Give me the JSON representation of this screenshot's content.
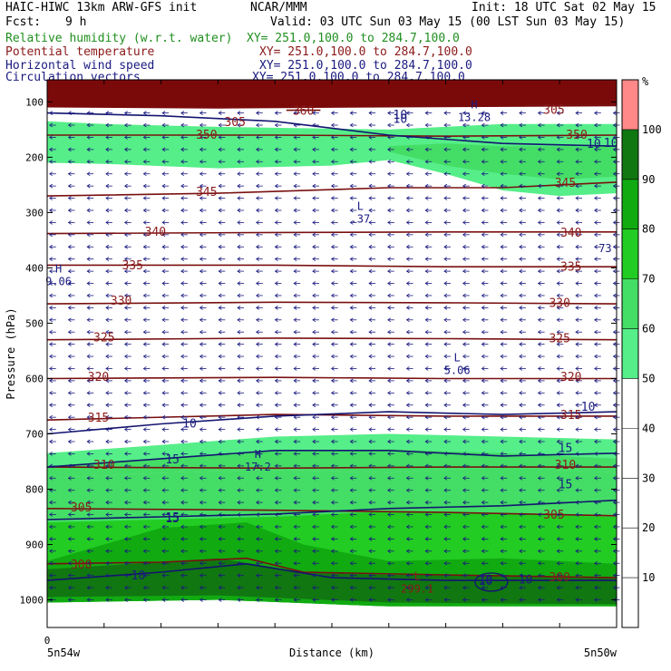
{
  "header": {
    "model": "HAIC-HIWC 13km ARW-GFS init",
    "org": "NCAR/MMM",
    "init": "Init: 18 UTC Sat 02 May 15",
    "fcst_label": "Fcst:",
    "fcst_value": "9 h",
    "valid": "Valid: 03 UTC Sun 03 May 15 (00 LST Sun 03 May 15)",
    "fields": [
      {
        "name": "Relative humidity (w.r.t. water)",
        "xy": "XY= 251.0,100.0 to 284.7,100.0",
        "color": "#1f8f1f"
      },
      {
        "name": "Potential temperature",
        "xy": "XY= 251.0,100.0 to 284.7,100.0",
        "color": "#8b1a1a"
      },
      {
        "name": "Horizontal wind speed",
        "xy": "XY= 251.0,100.0 to 284.7,100.0",
        "color": "#1a1a80"
      },
      {
        "name": "Circulation vectors",
        "xy": "XY= 251.0,100.0 to 284.7,100.0",
        "color": "#1a1a80"
      }
    ]
  },
  "chart_data": {
    "type": "cross-section",
    "ylabel": "Pressure (hPa)",
    "xlabel": "Distance (km)",
    "x_tick": "0",
    "x_left_label": "5n54w",
    "x_right_label": "5n50w",
    "y_ticks": [
      100,
      200,
      300,
      400,
      500,
      600,
      700,
      800,
      900,
      1000
    ],
    "ylim": [
      1050,
      60
    ],
    "x_range": [
      0,
      100
    ],
    "colorbar": {
      "unit": "%",
      "ticks": [
        10,
        20,
        30,
        40,
        50,
        60,
        70,
        80,
        90,
        100
      ],
      "range": [
        0,
        110
      ],
      "bands": [
        {
          "from": 0,
          "to": 50,
          "color": "#ffffff"
        },
        {
          "from": 50,
          "to": 60,
          "color": "#55ee88"
        },
        {
          "from": 60,
          "to": 70,
          "color": "#44dd66"
        },
        {
          "from": 70,
          "to": 80,
          "color": "#22cc22"
        },
        {
          "from": 80,
          "to": 90,
          "color": "#11aa11"
        },
        {
          "from": 90,
          "to": 100,
          "color": "#117711"
        },
        {
          "from": 100,
          "to": 110,
          "color": "#ff8888"
        }
      ]
    },
    "rh_regions": [
      {
        "color": "#55ee88",
        "top": [
          [
            0,
            135
          ],
          [
            10,
            140
          ],
          [
            30,
            145
          ],
          [
            60,
            150
          ],
          [
            80,
            140
          ],
          [
            100,
            140
          ]
        ],
        "bottom": [
          [
            0,
            210
          ],
          [
            10,
            212
          ],
          [
            30,
            220
          ],
          [
            50,
            215
          ],
          [
            60,
            205
          ],
          [
            70,
            230
          ],
          [
            80,
            260
          ],
          [
            90,
            270
          ],
          [
            100,
            265
          ]
        ]
      },
      {
        "color": "#44dd66",
        "top": [
          [
            60,
            180
          ],
          [
            70,
            175
          ],
          [
            80,
            180
          ],
          [
            100,
            180
          ]
        ],
        "bottom": [
          [
            60,
            190
          ],
          [
            70,
            215
          ],
          [
            80,
            230
          ],
          [
            90,
            240
          ],
          [
            100,
            235
          ]
        ]
      },
      {
        "color": "#55ee88",
        "top": [
          [
            0,
            735
          ],
          [
            20,
            720
          ],
          [
            40,
            705
          ],
          [
            60,
            700
          ],
          [
            80,
            705
          ],
          [
            100,
            710
          ]
        ],
        "bottom": [
          [
            0,
            780
          ],
          [
            20,
            770
          ],
          [
            40,
            765
          ],
          [
            60,
            770
          ],
          [
            80,
            760
          ],
          [
            100,
            770
          ]
        ]
      },
      {
        "color": "#44dd66",
        "top": [
          [
            0,
            760
          ],
          [
            20,
            745
          ],
          [
            40,
            730
          ],
          [
            60,
            728
          ],
          [
            80,
            735
          ],
          [
            100,
            745
          ]
        ],
        "bottom": [
          [
            0,
            780
          ],
          [
            20,
            770
          ],
          [
            40,
            765
          ],
          [
            60,
            770
          ],
          [
            80,
            760
          ],
          [
            100,
            770
          ]
        ]
      },
      {
        "color": "#44dd66",
        "top": [
          [
            0,
            780
          ],
          [
            20,
            770
          ],
          [
            40,
            765
          ],
          [
            60,
            770
          ],
          [
            80,
            760
          ],
          [
            100,
            770
          ]
        ],
        "bottom": [
          [
            0,
            1005
          ],
          [
            30,
            1000
          ],
          [
            60,
            1012
          ],
          [
            100,
            1012
          ]
        ]
      },
      {
        "color": "#22cc22",
        "top": [
          [
            0,
            860
          ],
          [
            20,
            855
          ],
          [
            40,
            850
          ],
          [
            60,
            840
          ],
          [
            80,
            845
          ],
          [
            100,
            850
          ]
        ],
        "bottom": [
          [
            0,
            1005
          ],
          [
            30,
            1000
          ],
          [
            60,
            1012
          ],
          [
            100,
            1012
          ]
        ]
      },
      {
        "color": "#11aa11",
        "top": [
          [
            0,
            930
          ],
          [
            20,
            870
          ],
          [
            35,
            860
          ],
          [
            45,
            900
          ],
          [
            60,
            930
          ],
          [
            80,
            925
          ],
          [
            100,
            935
          ]
        ],
        "bottom": [
          [
            0,
            1005
          ],
          [
            30,
            1000
          ],
          [
            60,
            1012
          ],
          [
            100,
            1012
          ]
        ]
      },
      {
        "color": "#117711",
        "top": [
          [
            0,
            945
          ],
          [
            15,
            935
          ],
          [
            30,
            925
          ],
          [
            45,
            950
          ],
          [
            60,
            955
          ],
          [
            80,
            955
          ],
          [
            100,
            960
          ]
        ],
        "bottom": [
          [
            0,
            995
          ],
          [
            30,
            992
          ],
          [
            60,
            1005
          ],
          [
            100,
            1008
          ]
        ]
      },
      {
        "color": "#7a0a0a",
        "top": [
          [
            0,
            60
          ],
          [
            100,
            60
          ]
        ],
        "bottom": [
          [
            0,
            110
          ],
          [
            30,
            112
          ],
          [
            60,
            110
          ],
          [
            100,
            108
          ]
        ]
      }
    ],
    "theta_contours": [
      {
        "value": "345",
        "pts": [
          [
            0,
            270
          ],
          [
            30,
            265
          ],
          [
            60,
            255
          ],
          [
            80,
            255
          ],
          [
            100,
            245
          ]
        ],
        "labels": [
          [
            28,
            262
          ],
          [
            91,
            245
          ]
        ]
      },
      {
        "value": "340",
        "pts": [
          [
            0,
            338
          ],
          [
            40,
            336
          ],
          [
            70,
            335
          ],
          [
            100,
            335
          ]
        ],
        "labels": [
          [
            19,
            334
          ],
          [
            92,
            335
          ]
        ]
      },
      {
        "value": "335",
        "pts": [
          [
            0,
            395
          ],
          [
            40,
            395
          ],
          [
            70,
            398
          ],
          [
            100,
            398
          ]
        ],
        "labels": [
          [
            15,
            394
          ],
          [
            92,
            397
          ]
        ]
      },
      {
        "value": "330",
        "pts": [
          [
            0,
            465
          ],
          [
            40,
            462
          ],
          [
            70,
            463
          ],
          [
            100,
            465
          ]
        ],
        "labels": [
          [
            13,
            458
          ],
          [
            90,
            462
          ]
        ]
      },
      {
        "value": "325",
        "pts": [
          [
            0,
            530
          ],
          [
            40,
            527
          ],
          [
            70,
            528
          ],
          [
            100,
            530
          ]
        ],
        "labels": [
          [
            10,
            525
          ],
          [
            90,
            526
          ]
        ]
      },
      {
        "value": "320",
        "pts": [
          [
            0,
            600
          ],
          [
            40,
            598
          ],
          [
            70,
            600
          ],
          [
            100,
            600
          ]
        ],
        "labels": [
          [
            9,
            596
          ],
          [
            92,
            596
          ]
        ]
      },
      {
        "value": "315",
        "pts": [
          [
            0,
            675
          ],
          [
            40,
            665
          ],
          [
            70,
            668
          ],
          [
            100,
            668
          ]
        ],
        "labels": [
          [
            9,
            670
          ],
          [
            92,
            665
          ]
        ]
      },
      {
        "value": "310",
        "pts": [
          [
            0,
            760
          ],
          [
            40,
            762
          ],
          [
            70,
            760
          ],
          [
            100,
            760
          ]
        ],
        "labels": [
          [
            10,
            755
          ],
          [
            91,
            755
          ]
        ]
      },
      {
        "value": "305",
        "pts": [
          [
            0,
            835
          ],
          [
            40,
            838
          ],
          [
            70,
            842
          ],
          [
            100,
            848
          ]
        ],
        "labels": [
          [
            6,
            832
          ],
          [
            89,
            845
          ]
        ]
      },
      {
        "value": "300",
        "pts": [
          [
            0,
            935
          ],
          [
            20,
            932
          ],
          [
            35,
            925
          ],
          [
            45,
            950
          ],
          [
            70,
            955
          ],
          [
            100,
            960
          ]
        ],
        "labels": [
          [
            6,
            935
          ],
          [
            90,
            958
          ]
        ]
      },
      {
        "value": "350",
        "pts": [
          [
            0,
            160
          ],
          [
            40,
            160
          ],
          [
            70,
            162
          ],
          [
            100,
            160
          ]
        ],
        "labels": [
          [
            28,
            158
          ],
          [
            93,
            158
          ]
        ]
      },
      {
        "value": "360",
        "pts": [
          [
            42,
            115
          ],
          [
            48,
            115
          ]
        ],
        "labels": [
          [
            45,
            115
          ]
        ]
      },
      {
        "value": "305",
        "pts": [
          [
            84,
            105
          ],
          [
            100,
            105
          ]
        ],
        "labels": [
          [
            89,
            113
          ]
        ]
      }
    ],
    "wind_contours": [
      {
        "value": "10",
        "pts": [
          [
            0,
            700
          ],
          [
            20,
            682
          ],
          [
            40,
            668
          ],
          [
            60,
            660
          ],
          [
            80,
            665
          ],
          [
            100,
            660
          ]
        ],
        "labels": [
          [
            25,
            680
          ],
          [
            95,
            650
          ]
        ]
      },
      {
        "value": "15",
        "pts": [
          [
            0,
            760
          ],
          [
            20,
            745
          ],
          [
            40,
            730
          ],
          [
            60,
            730
          ],
          [
            80,
            740
          ],
          [
            100,
            735
          ]
        ],
        "labels": [
          [
            22,
            745
          ],
          [
            91,
            725
          ]
        ]
      },
      {
        "value": "15",
        "pts": [
          [
            0,
            855
          ],
          [
            20,
            850
          ],
          [
            40,
            845
          ],
          [
            60,
            835
          ],
          [
            80,
            830
          ],
          [
            100,
            820
          ]
        ],
        "labels": [
          [
            22,
            850
          ],
          [
            91,
            790
          ]
        ]
      },
      {
        "value": "10",
        "pts": [
          [
            0,
            965
          ],
          [
            20,
            950
          ],
          [
            35,
            935
          ],
          [
            50,
            960
          ],
          [
            70,
            965
          ],
          [
            100,
            965
          ]
        ],
        "labels": [
          [
            16,
            955
          ],
          [
            77,
            962
          ]
        ]
      },
      {
        "value": "10",
        "pts": [
          [
            0,
            120
          ],
          [
            20,
            125
          ],
          [
            40,
            135
          ],
          [
            60,
            160
          ],
          [
            80,
            175
          ],
          [
            100,
            180
          ]
        ],
        "labels": [
          [
            62,
            122
          ],
          [
            96,
            175
          ]
        ]
      }
    ],
    "extrema_labels": [
      {
        "symbol": "H",
        "value": "13.28",
        "x": 75,
        "y": 128,
        "color": "#1a1a80"
      },
      {
        "symbol": "L",
        "value": ".37",
        "x": 55,
        "y": 312,
        "color": "#1a1a80"
      },
      {
        "symbol": "H",
        "value": "9.06",
        "x": 2,
        "y": 425,
        "color": "#1a1a80"
      },
      {
        "symbol": "L",
        "value": "5.06",
        "x": 72,
        "y": 585,
        "color": "#1a1a80"
      },
      {
        "symbol": "H",
        "value": "17.2",
        "x": 37,
        "y": 760,
        "color": "#1a1a80"
      },
      {
        "symbol": "L",
        "value": "299.1",
        "x": 65,
        "y": 980,
        "color": "#8b1a1a"
      },
      {
        "symbol": "",
        "value": "73",
        "x": 98,
        "y": 365,
        "color": "#1a1a80"
      }
    ],
    "extra_contour_labels": [
      {
        "value": "305",
        "x": 33,
        "y": 135,
        "color": "#8b1a1a"
      },
      {
        "value": "10",
        "x": 62,
        "y": 130,
        "color": "#1a1a80"
      },
      {
        "value": "10",
        "x": 77,
        "y": 965,
        "color": "#1a1a80"
      },
      {
        "value": "10",
        "x": 84,
        "y": 962,
        "color": "#1a1a80"
      },
      {
        "value": "15",
        "x": 22,
        "y": 852,
        "color": "#1a1a80"
      },
      {
        "value": "10",
        "x": 99,
        "y": 173,
        "color": "#1a1a80"
      }
    ]
  }
}
